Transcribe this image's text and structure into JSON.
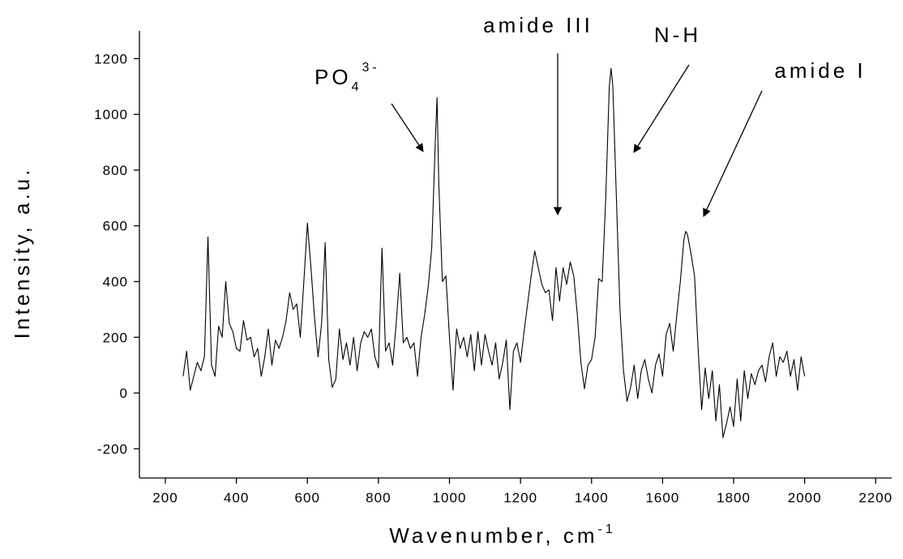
{
  "chart_data": {
    "type": "line",
    "x_label": "Wavenumber, cm",
    "x_label_sup": "-1",
    "y_label": "Intensity, a.u.",
    "xlim": [
      127,
      2245
    ],
    "xticks": [
      200,
      400,
      600,
      800,
      1000,
      1200,
      1400,
      1600,
      1800,
      2000,
      2200
    ],
    "ylim": [
      -305,
      1300
    ],
    "yticks": [
      -200,
      0,
      200,
      400,
      600,
      800,
      1000,
      1200
    ],
    "grid": false,
    "annotations": [
      {
        "text": "PO",
        "sub": "4",
        "sup": "3-"
      },
      {
        "text": "amide III"
      },
      {
        "text": "N-H"
      },
      {
        "text": "amide I"
      }
    ],
    "x": [
      250,
      260,
      270,
      280,
      290,
      300,
      310,
      320,
      330,
      340,
      350,
      360,
      370,
      380,
      390,
      400,
      410,
      420,
      430,
      440,
      450,
      460,
      470,
      480,
      490,
      500,
      510,
      520,
      530,
      540,
      550,
      560,
      570,
      580,
      590,
      600,
      610,
      620,
      630,
      640,
      650,
      660,
      670,
      680,
      690,
      700,
      710,
      720,
      730,
      740,
      750,
      760,
      770,
      780,
      790,
      800,
      810,
      820,
      830,
      840,
      850,
      860,
      870,
      880,
      890,
      900,
      910,
      920,
      930,
      940,
      950,
      960,
      965,
      970,
      980,
      990,
      1000,
      1010,
      1020,
      1030,
      1040,
      1050,
      1060,
      1070,
      1080,
      1090,
      1100,
      1110,
      1120,
      1130,
      1140,
      1150,
      1160,
      1170,
      1180,
      1190,
      1200,
      1210,
      1220,
      1230,
      1240,
      1250,
      1260,
      1270,
      1280,
      1290,
      1300,
      1310,
      1320,
      1330,
      1340,
      1350,
      1360,
      1370,
      1380,
      1390,
      1400,
      1410,
      1420,
      1430,
      1440,
      1450,
      1455,
      1460,
      1470,
      1480,
      1490,
      1500,
      1510,
      1520,
      1530,
      1540,
      1550,
      1560,
      1570,
      1580,
      1590,
      1600,
      1610,
      1620,
      1630,
      1640,
      1650,
      1660,
      1665,
      1670,
      1680,
      1690,
      1700,
      1710,
      1720,
      1730,
      1740,
      1750,
      1760,
      1770,
      1780,
      1790,
      1800,
      1810,
      1820,
      1830,
      1840,
      1850,
      1860,
      1870,
      1880,
      1890,
      1900,
      1910,
      1920,
      1930,
      1940,
      1950,
      1960,
      1970,
      1980,
      1990,
      2000
    ],
    "series": [
      {
        "color": "#000000",
        "values": [
          60,
          150,
          10,
          60,
          110,
          80,
          130,
          560,
          100,
          60,
          240,
          200,
          400,
          250,
          220,
          160,
          150,
          260,
          190,
          200,
          130,
          160,
          60,
          130,
          230,
          100,
          190,
          160,
          200,
          260,
          360,
          300,
          320,
          200,
          400,
          610,
          450,
          270,
          130,
          250,
          540,
          120,
          20,
          50,
          230,
          120,
          180,
          100,
          200,
          80,
          180,
          220,
          200,
          230,
          130,
          90,
          520,
          150,
          180,
          100,
          250,
          430,
          180,
          200,
          160,
          180,
          60,
          200,
          280,
          380,
          520,
          900,
          1060,
          750,
          400,
          420,
          200,
          10,
          230,
          160,
          200,
          130,
          210,
          80,
          220,
          100,
          210,
          150,
          100,
          180,
          50,
          110,
          190,
          -60,
          150,
          180,
          110,
          220,
          320,
          420,
          510,
          450,
          390,
          360,
          370,
          260,
          450,
          330,
          450,
          390,
          470,
          420,
          280,
          110,
          15,
          100,
          120,
          200,
          410,
          400,
          700,
          1100,
          1165,
          1100,
          700,
          300,
          80,
          -30,
          20,
          100,
          -20,
          80,
          120,
          50,
          0,
          100,
          140,
          60,
          210,
          250,
          150,
          280,
          400,
          550,
          580,
          570,
          500,
          420,
          160,
          -60,
          90,
          -20,
          80,
          -100,
          30,
          -160,
          -110,
          -50,
          -120,
          50,
          -100,
          80,
          -20,
          70,
          30,
          80,
          100,
          40,
          130,
          180,
          60,
          130,
          110,
          150,
          60,
          120,
          10,
          130,
          60
        ]
      }
    ]
  }
}
